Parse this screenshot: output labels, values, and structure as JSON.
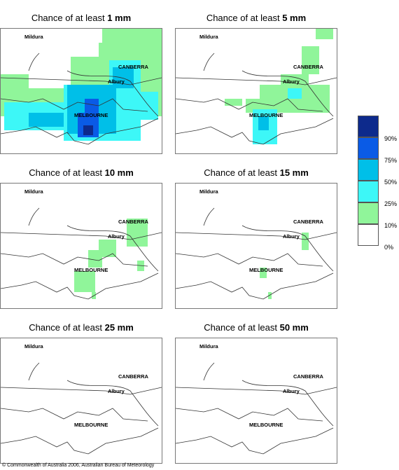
{
  "panels": [
    {
      "title_prefix": "Chance of at least ",
      "threshold": "1 mm"
    },
    {
      "title_prefix": "Chance of at least ",
      "threshold": "5 mm"
    },
    {
      "title_prefix": "Chance of at least ",
      "threshold": "10 mm"
    },
    {
      "title_prefix": "Chance of at least ",
      "threshold": "15 mm"
    },
    {
      "title_prefix": "Chance of at least ",
      "threshold": "25 mm"
    },
    {
      "title_prefix": "Chance of at least ",
      "threshold": "50 mm"
    }
  ],
  "places": {
    "mildura": "Mildura",
    "canberra": "CANBERRA",
    "albury": "Albury",
    "melbourne": "MELBOURNE"
  },
  "legend": {
    "labels": [
      "90%",
      "75%",
      "50%",
      "25%",
      "10%",
      "0%"
    ],
    "colors": [
      "#0d2a8c",
      "#0a5be6",
      "#00bfe8",
      "#3df7f7",
      "#90f59a",
      "#ffffff"
    ]
  },
  "footer": "© Commonwealth of Australia 2006, Australian Bureau of Meteorology"
}
